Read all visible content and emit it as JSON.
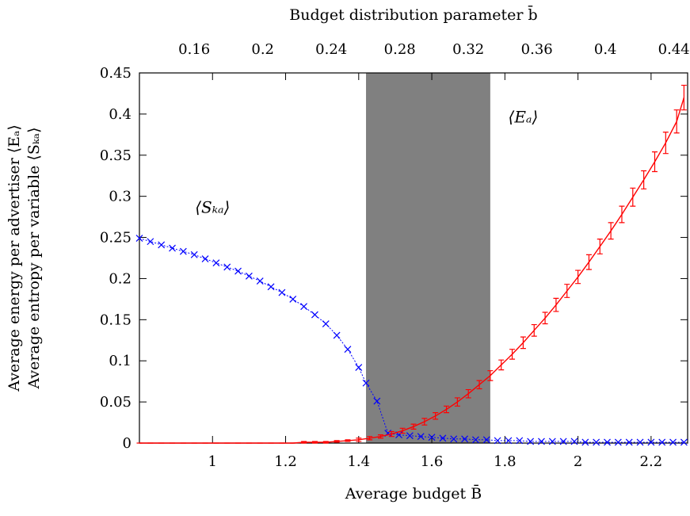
{
  "chart_data": {
    "type": "line",
    "xlabel": "Average budget B̄",
    "x2label": "Budget distribution parameter b̄",
    "ylabel_line1": "Average energy per advertiser ⟨Eₐ⟩",
    "ylabel_line2": "Average entropy per variable ⟨Sₖₐ⟩",
    "xlim": [
      0.8,
      2.3
    ],
    "ylim": [
      0,
      0.45
    ],
    "x_ticks": [
      1,
      1.2,
      1.4,
      1.6,
      1.8,
      2,
      2.2
    ],
    "x_tick_labels": [
      "1",
      "1.2",
      "1.4",
      "1.6",
      "1.8",
      "2",
      "2.2"
    ],
    "y_ticks": [
      0,
      0.05,
      0.1,
      0.15,
      0.2,
      0.25,
      0.3,
      0.35,
      0.4,
      0.45
    ],
    "y_tick_labels": [
      "0",
      "0.05",
      "0.1",
      "0.15",
      "0.2",
      "0.25",
      "0.3",
      "0.35",
      "0.4",
      "0.45"
    ],
    "x2_ticks": [
      0.16,
      0.2,
      0.24,
      0.28,
      0.32,
      0.36,
      0.4,
      0.44
    ],
    "x2_tick_labels": [
      "0.16",
      "0.2",
      "0.24",
      "0.28",
      "0.32",
      "0.36",
      "0.4",
      "0.44"
    ],
    "x2_range": [
      0.128,
      0.448
    ],
    "shaded_region": {
      "x_start": 1.42,
      "x_end": 1.76,
      "color": "#808080"
    },
    "grid": false,
    "series": [
      {
        "name": "⟨Sₖₐ⟩",
        "color": "#0000ff",
        "marker": "x",
        "style": "dotted",
        "label_at": [
          1.0,
          0.28
        ],
        "x": [
          0.8,
          0.83,
          0.86,
          0.89,
          0.92,
          0.95,
          0.98,
          1.01,
          1.04,
          1.07,
          1.1,
          1.13,
          1.16,
          1.19,
          1.22,
          1.25,
          1.28,
          1.31,
          1.34,
          1.37,
          1.4,
          1.42,
          1.45,
          1.48,
          1.51,
          1.54,
          1.57,
          1.6,
          1.63,
          1.66,
          1.69,
          1.72,
          1.75,
          1.78,
          1.81,
          1.84,
          1.87,
          1.9,
          1.93,
          1.96,
          1.99,
          2.02,
          2.05,
          2.08,
          2.11,
          2.14,
          2.17,
          2.2,
          2.23,
          2.26,
          2.29
        ],
        "y": [
          0.249,
          0.245,
          0.241,
          0.237,
          0.233,
          0.229,
          0.224,
          0.219,
          0.214,
          0.209,
          0.203,
          0.197,
          0.19,
          0.183,
          0.175,
          0.166,
          0.156,
          0.145,
          0.131,
          0.114,
          0.092,
          0.073,
          0.051,
          0.012,
          0.01,
          0.009,
          0.008,
          0.007,
          0.006,
          0.005,
          0.005,
          0.004,
          0.004,
          0.003,
          0.003,
          0.003,
          0.002,
          0.002,
          0.002,
          0.002,
          0.002,
          0.001,
          0.001,
          0.001,
          0.001,
          0.001,
          0.001,
          0.001,
          0.001,
          0.001,
          0.001
        ]
      },
      {
        "name": "⟨Eₐ⟩",
        "color": "#ff0000",
        "marker": "errorbar",
        "style": "solid",
        "label_at": [
          1.85,
          0.39
        ],
        "x": [
          0.8,
          0.83,
          0.86,
          0.89,
          0.92,
          0.95,
          0.98,
          1.01,
          1.04,
          1.07,
          1.1,
          1.13,
          1.16,
          1.19,
          1.22,
          1.25,
          1.28,
          1.31,
          1.34,
          1.37,
          1.4,
          1.43,
          1.46,
          1.49,
          1.52,
          1.55,
          1.58,
          1.61,
          1.64,
          1.67,
          1.7,
          1.73,
          1.76,
          1.79,
          1.82,
          1.85,
          1.88,
          1.91,
          1.94,
          1.97,
          2.0,
          2.03,
          2.06,
          2.09,
          2.12,
          2.15,
          2.18,
          2.21,
          2.24,
          2.27,
          2.29
        ],
        "y": [
          0,
          0,
          0,
          0,
          0,
          0,
          0,
          0,
          0,
          0,
          0,
          0,
          0,
          0,
          0,
          0.001,
          0.001,
          0.001,
          0.002,
          0.003,
          0.004,
          0.006,
          0.008,
          0.011,
          0.015,
          0.02,
          0.026,
          0.033,
          0.041,
          0.05,
          0.06,
          0.071,
          0.082,
          0.095,
          0.108,
          0.122,
          0.137,
          0.152,
          0.168,
          0.185,
          0.202,
          0.22,
          0.239,
          0.258,
          0.278,
          0.299,
          0.32,
          0.342,
          0.365,
          0.391,
          0.42
        ],
        "err": [
          0,
          0,
          0,
          0,
          0,
          0,
          0,
          0,
          0,
          0,
          0,
          0,
          0,
          0,
          0,
          0.001,
          0.001,
          0.001,
          0.001,
          0.001,
          0.002,
          0.002,
          0.002,
          0.003,
          0.003,
          0.003,
          0.004,
          0.004,
          0.004,
          0.005,
          0.005,
          0.005,
          0.006,
          0.006,
          0.006,
          0.007,
          0.007,
          0.007,
          0.008,
          0.008,
          0.008,
          0.009,
          0.009,
          0.01,
          0.01,
          0.011,
          0.011,
          0.012,
          0.013,
          0.014,
          0.015
        ]
      }
    ]
  }
}
